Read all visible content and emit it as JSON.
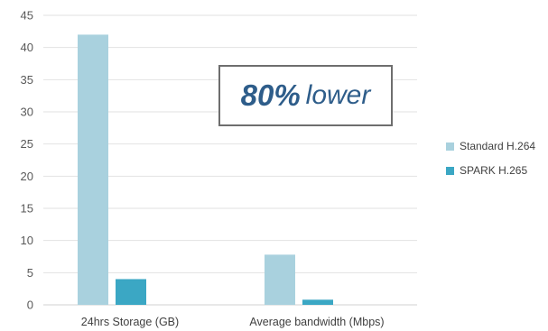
{
  "chart_data": {
    "type": "bar",
    "categories": [
      "24hrs Storage (GB)",
      "Average bandwidth (Mbps)"
    ],
    "series": [
      {
        "name": "Standard H.264",
        "values": [
          42,
          7.8
        ],
        "color": "#a9d1de"
      },
      {
        "name": "SPARK H.265",
        "values": [
          4,
          0.8
        ],
        "color": "#3ba7c4"
      }
    ],
    "ylim": [
      0,
      45
    ],
    "yticks": [
      0,
      5,
      10,
      15,
      20,
      25,
      30,
      35,
      40,
      45
    ],
    "grid": true,
    "legend": "right",
    "annotation": {
      "emphasis": "80%",
      "text": "lower"
    }
  }
}
